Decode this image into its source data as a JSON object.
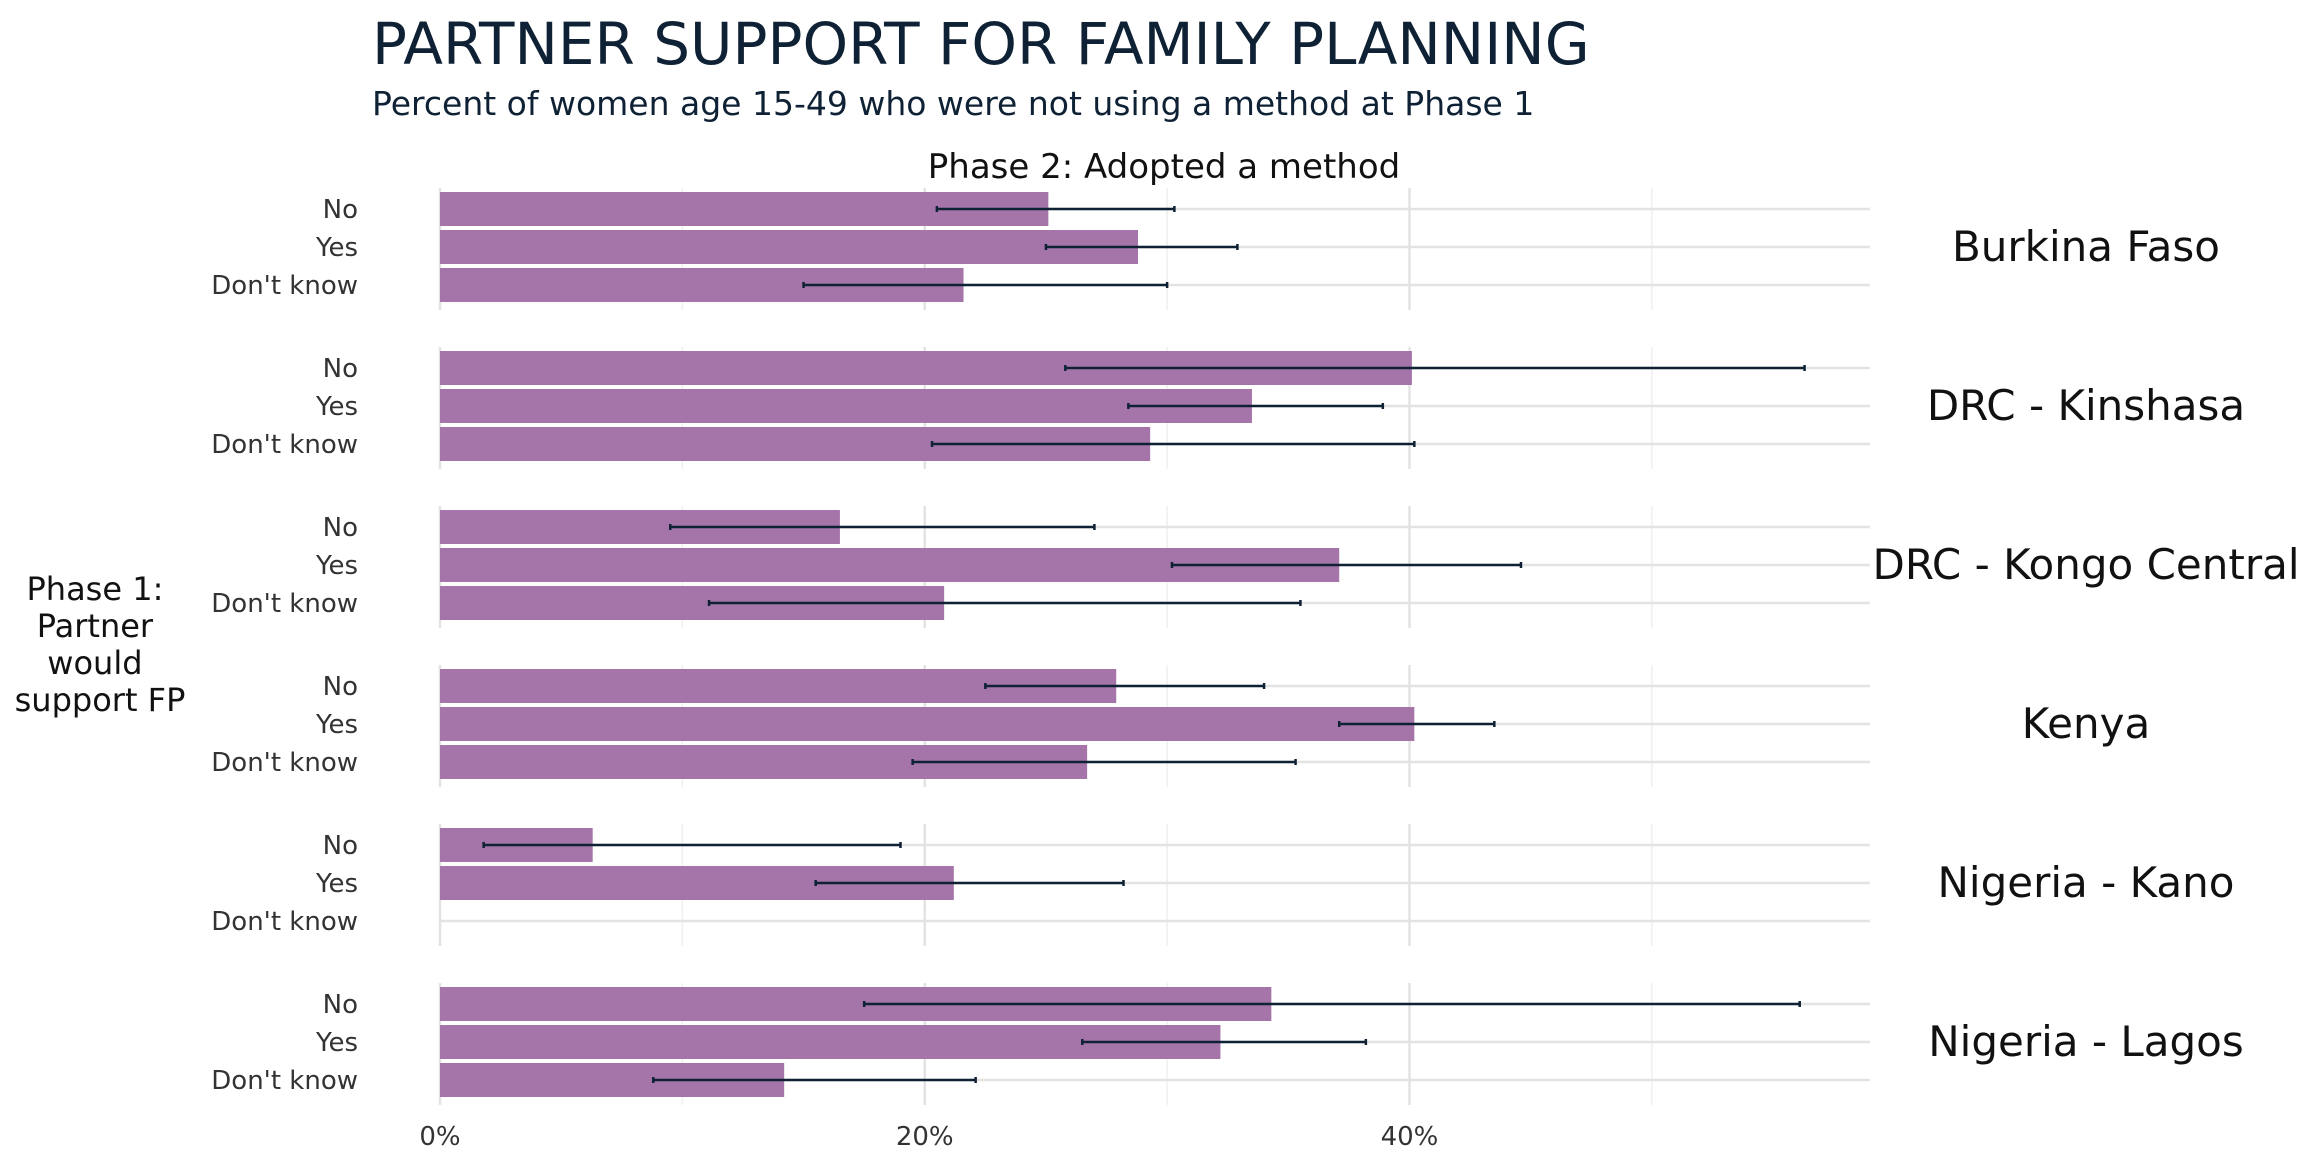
{
  "chart_data": {
    "type": "bar",
    "orientation": "horizontal",
    "title": "PARTNER SUPPORT FOR FAMILY PLANNING",
    "subtitle": "Percent of women age 15-49 who were not using a method at Phase 1",
    "facet_label_top": "Phase 2: Adopted a method",
    "ylabel": "Phase 1: Partner would support FP",
    "ylabel_lines": [
      "Phase 1:",
      "Partner",
      "would",
      "support FP"
    ],
    "categories": [
      "No",
      "Yes",
      "Don't know"
    ],
    "xlim": [
      0,
      59
    ],
    "x_ticks": [
      0,
      20,
      40
    ],
    "x_tick_labels": [
      "0%",
      "20%",
      "40%"
    ],
    "bar_color": "#a575a9",
    "errorbar_color": "#0f2235",
    "grid": true,
    "facets": [
      {
        "name": "Burkina Faso",
        "values": [
          25.1,
          28.8,
          21.6
        ],
        "ci_low": [
          20.5,
          25.0,
          15.0
        ],
        "ci_high": [
          30.3,
          32.9,
          30.0
        ]
      },
      {
        "name": "DRC - Kinshasa",
        "values": [
          40.1,
          33.5,
          29.3
        ],
        "ci_low": [
          25.8,
          28.4,
          20.3
        ],
        "ci_high": [
          56.3,
          38.9,
          40.2
        ]
      },
      {
        "name": "DRC - Kongo Central",
        "values": [
          16.5,
          37.1,
          20.8
        ],
        "ci_low": [
          9.5,
          30.2,
          11.1
        ],
        "ci_high": [
          27.0,
          44.6,
          35.5
        ]
      },
      {
        "name": "Kenya",
        "values": [
          27.9,
          40.2,
          26.7
        ],
        "ci_low": [
          22.5,
          37.1,
          19.5
        ],
        "ci_high": [
          34.0,
          43.5,
          35.3
        ]
      },
      {
        "name": "Nigeria - Kano",
        "values": [
          6.3,
          21.2,
          null
        ],
        "ci_low": [
          1.8,
          15.5,
          null
        ],
        "ci_high": [
          19.0,
          28.2,
          null
        ]
      },
      {
        "name": "Nigeria - Lagos",
        "values": [
          34.3,
          32.2,
          14.2
        ],
        "ci_low": [
          17.5,
          26.5,
          8.8
        ],
        "ci_high": [
          56.1,
          38.2,
          22.1
        ]
      }
    ]
  }
}
